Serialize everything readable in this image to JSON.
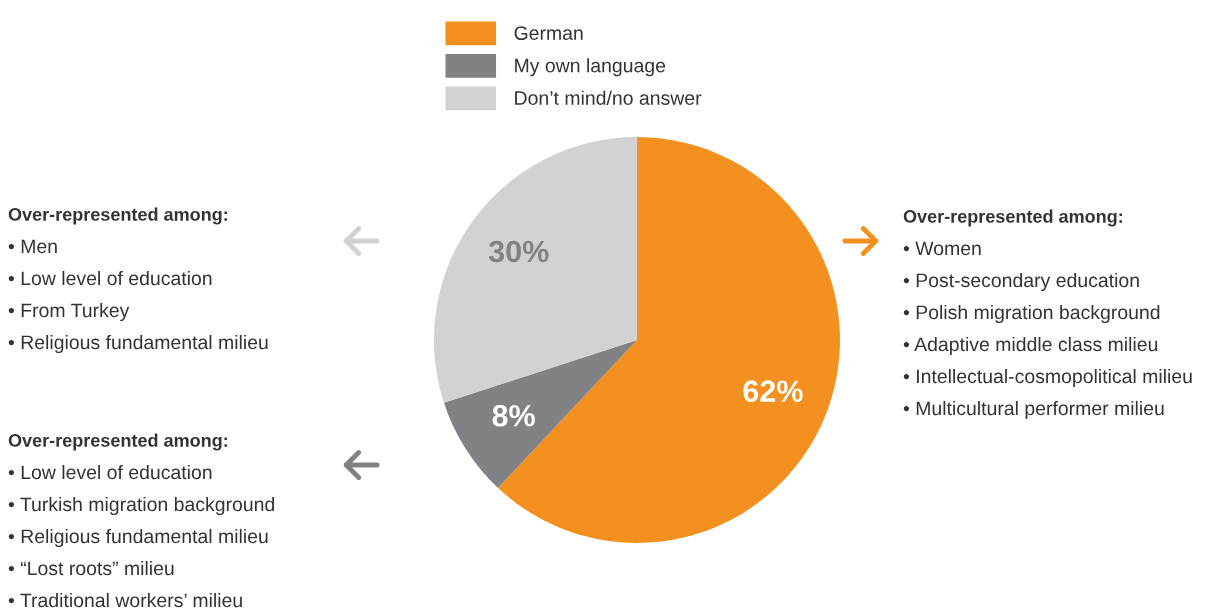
{
  "chart_data": {
    "type": "pie",
    "categories": [
      "German",
      "My own language",
      "Don’t mind/no answer"
    ],
    "values": [
      62,
      8,
      30
    ],
    "colors": [
      "#f39020",
      "#808285",
      "#d1d2d4"
    ],
    "value_labels": [
      "62%",
      "8%",
      "30%"
    ],
    "legend": "top",
    "annotations": [
      "Over-represented among:\n• Men\n• Low level of education\n• From Turkey\n• Religious fundamental milieu",
      "Over-represented among:\n• Low level of education\n• Turkish migration background\n• Religious fundamental milieu\n• “Lost roots” milieu\n• Traditional workers’ milieu",
      "Over-represented among:\n• Women\n• Post-secondary education\n• Polish migration background\n• Adaptive middle class milieu\n• Intellectual-cosmopolitical milieu\n• Multicultural performer milieu"
    ]
  }
}
